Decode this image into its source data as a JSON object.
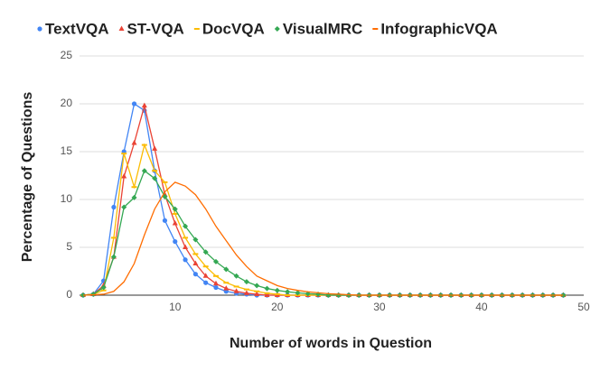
{
  "chart_data": {
    "type": "line",
    "x_label": "Number of words in Question",
    "y_label": "Percentage of Questions",
    "x": [
      1,
      2,
      3,
      4,
      5,
      6,
      7,
      8,
      9,
      10,
      11,
      12,
      13,
      14,
      15,
      16,
      17,
      18,
      19,
      20,
      21,
      22,
      23,
      24,
      25,
      26,
      27,
      28,
      29,
      30,
      31,
      32,
      33,
      34,
      35,
      36,
      37,
      38,
      39,
      40,
      41,
      42,
      43,
      44,
      45,
      46,
      47,
      48
    ],
    "xlim": [
      1,
      50
    ],
    "xticks": [
      10,
      20,
      30,
      40,
      50
    ],
    "ylim": [
      0,
      25
    ],
    "yticks": [
      0,
      5,
      10,
      15,
      20,
      25
    ],
    "grid": true,
    "legend": "top",
    "series": [
      {
        "name": "TextVQA",
        "color": "#4285f4",
        "marker": "circle",
        "values": [
          0,
          0.1,
          1.5,
          9.2,
          15,
          20,
          19.3,
          13,
          7.8,
          5.6,
          3.7,
          2.2,
          1.3,
          0.8,
          0.4,
          0.2,
          0.1,
          0,
          0,
          0,
          0,
          0,
          0,
          0,
          0,
          0,
          0,
          0,
          0,
          0,
          0,
          0,
          0,
          0,
          0,
          0,
          0,
          0,
          0,
          0,
          0,
          0,
          0,
          0,
          0,
          0,
          0,
          0
        ]
      },
      {
        "name": "ST-VQA",
        "color": "#ea4335",
        "marker": "triangle",
        "values": [
          0,
          0.1,
          1,
          4,
          12.4,
          15.9,
          19.8,
          15.3,
          10.5,
          7.5,
          5,
          3.3,
          2,
          1.2,
          0.7,
          0.4,
          0.2,
          0.1,
          0,
          0,
          0,
          0,
          0,
          0,
          0,
          0,
          0,
          0,
          0,
          0,
          0,
          0,
          0,
          0,
          0,
          0,
          0,
          0,
          0,
          0,
          0,
          0,
          0,
          0,
          0,
          0,
          0,
          0
        ]
      },
      {
        "name": "DocVQA",
        "color": "#fbbc04",
        "marker": "dash",
        "values": [
          0,
          0.1,
          0.5,
          6,
          14.8,
          11.3,
          15.7,
          13,
          11.8,
          8.5,
          6,
          4.3,
          3,
          2,
          1.3,
          0.9,
          0.6,
          0.4,
          0.2,
          0.1,
          0,
          0,
          0,
          0,
          0,
          0,
          0,
          0,
          0,
          0,
          0,
          0,
          0,
          0,
          0,
          0,
          0,
          0,
          0,
          0,
          0,
          0,
          0,
          0,
          0,
          0,
          0,
          0
        ]
      },
      {
        "name": "VisualMRC",
        "color": "#34a853",
        "marker": "diamond",
        "values": [
          0,
          0.1,
          0.8,
          4,
          9.2,
          10.2,
          13,
          12.2,
          10.3,
          9,
          7.2,
          5.8,
          4.5,
          3.5,
          2.7,
          2,
          1.4,
          1,
          0.7,
          0.5,
          0.35,
          0.25,
          0.15,
          0.1,
          0,
          0,
          0,
          0,
          0,
          0,
          0,
          0,
          0,
          0,
          0,
          0,
          0,
          0,
          0,
          0,
          0,
          0,
          0,
          0,
          0,
          0,
          0,
          0
        ]
      },
      {
        "name": "InfographicVQA",
        "color": "#ff6d01",
        "marker": "none",
        "values": [
          0,
          0.05,
          0.1,
          0.4,
          1.4,
          3.3,
          6.3,
          9,
          10.8,
          11.8,
          11.4,
          10.5,
          9,
          7.2,
          5.7,
          4.2,
          3,
          2,
          1.5,
          1,
          0.7,
          0.5,
          0.35,
          0.25,
          0.15,
          0.1,
          0.05,
          0,
          0,
          0,
          0,
          0,
          0,
          0,
          0,
          0,
          0,
          0,
          0,
          0,
          0,
          0,
          0,
          0,
          0,
          0,
          0,
          0
        ]
      }
    ]
  }
}
